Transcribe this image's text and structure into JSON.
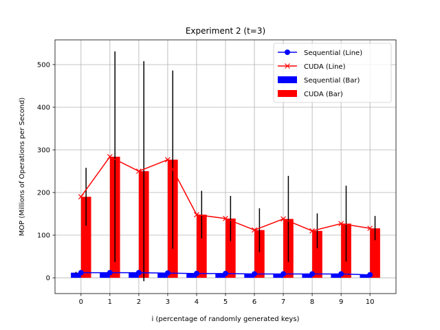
{
  "chart_data": {
    "type": "bar",
    "title": "Experiment 2 (t=3)",
    "xlabel": "i (percentage of randomly generated keys)",
    "ylabel": "MOP (Millions of Operations per Second)",
    "x": [
      0,
      1,
      2,
      3,
      4,
      5,
      6,
      7,
      8,
      9,
      10
    ],
    "xlim": [
      -0.9,
      10.9
    ],
    "ylim": [
      -37,
      558
    ],
    "yticks": [
      0,
      100,
      200,
      300,
      400,
      500
    ],
    "grid": true,
    "legend_position": "top-right",
    "series": [
      {
        "name": "Sequential (Line)",
        "kind": "line",
        "marker": "circle",
        "color": "#0000ff",
        "values": [
          12,
          12,
          12,
          11,
          10,
          10,
          9,
          9,
          9,
          9,
          7
        ]
      },
      {
        "name": "CUDA (Line)",
        "kind": "line",
        "marker": "x",
        "color": "#ff0000",
        "values": [
          190,
          284,
          250,
          277,
          148,
          139,
          112,
          138,
          110,
          127,
          116
        ]
      },
      {
        "name": "Sequential (Bar)",
        "kind": "bar",
        "color": "#0000ff",
        "values": [
          12,
          12,
          12,
          11,
          10,
          10,
          9,
          9,
          9,
          9,
          7
        ],
        "error": [
          [
            10,
            14
          ],
          [
            11,
            13
          ],
          [
            11,
            13
          ],
          [
            10,
            12
          ],
          [
            9,
            11
          ],
          [
            9,
            11
          ],
          [
            8,
            10
          ],
          [
            8,
            10
          ],
          [
            8,
            10
          ],
          [
            8,
            10
          ],
          [
            6,
            8
          ]
        ]
      },
      {
        "name": "CUDA (Bar)",
        "kind": "bar",
        "color": "#ff0000",
        "values": [
          190,
          284,
          250,
          277,
          148,
          139,
          112,
          138,
          110,
          127,
          116
        ],
        "error": [
          [
            122,
            258
          ],
          [
            37,
            531
          ],
          [
            -8,
            508
          ],
          [
            68,
            486
          ],
          [
            92,
            204
          ],
          [
            86,
            192
          ],
          [
            60,
            163
          ],
          [
            37,
            239
          ],
          [
            69,
            151
          ],
          [
            38,
            216
          ],
          [
            88,
            145
          ]
        ]
      }
    ]
  }
}
